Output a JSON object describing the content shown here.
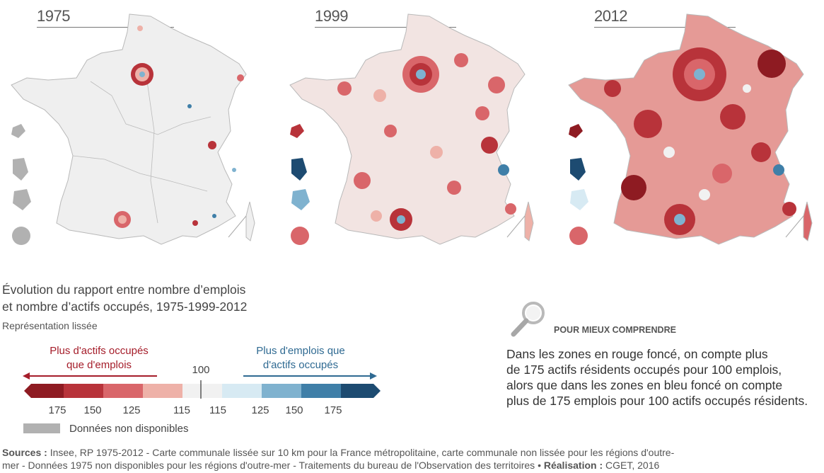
{
  "maps": [
    {
      "year": "1975"
    },
    {
      "year": "1999"
    },
    {
      "year": "2012"
    }
  ],
  "title_line1": "Évolution du rapport entre nombre d’emplois",
  "title_line2": "et nombre d’actifs occupés, 1975-1999-2012",
  "subtitle": "Représentation lissée",
  "legend": {
    "left_line1": "Plus d'actifs occupés",
    "left_line2": "que d'emplois",
    "right_line1": "Plus d'emplois que",
    "right_line2": "d'actifs occupés",
    "center": "100",
    "ticks": [
      "175",
      "150",
      "125",
      "115",
      "115",
      "125",
      "150",
      "175"
    ],
    "colors": [
      "#8e1b22",
      "#b8333a",
      "#d9666a",
      "#eeb1a8",
      "#f1f1f1",
      "#d7eaf3",
      "#7fb2cf",
      "#3f7fa8",
      "#1d4b71"
    ],
    "no_data": "Données non disponibles",
    "no_data_color": "#b1b1b1"
  },
  "mieux_comprendre": {
    "icon": "magnifier-icon",
    "heading": "POUR MIEUX COMPRENDRE",
    "lines": [
      "Dans les zones en rouge foncé, on compte plus",
      "de 175 actifs résidents occupés pour 100 emplois,",
      "alors que dans les zones en bleu foncé on compte",
      "plus de 175 emplois pour 100 actifs occupés résidents."
    ]
  },
  "sources": {
    "label1": "Sources :",
    "text1": "Insee, RP 1975-2012 - Carte communale lissée sur 10 km pour la France métropolitaine, carte communale non lissée pour les régions d'outre-",
    "text2": "mer - Données 1975 non disponibles pour les régions d'outre-mer - Traitements du bureau de l'Observation des territoires •",
    "label2": "Réalisation :",
    "text3": "CGET, 2016"
  }
}
